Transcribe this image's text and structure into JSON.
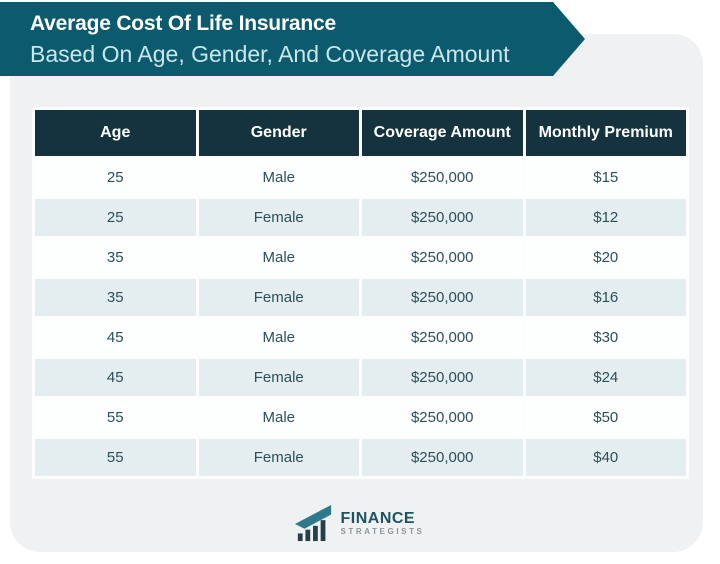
{
  "banner": {
    "title": "Average Cost Of Life Insurance",
    "subtitle": "Based On Age, Gender, And Coverage Amount"
  },
  "table": {
    "columns": [
      "Age",
      "Gender",
      "Coverage Amount",
      "Monthly Premium"
    ],
    "rows": [
      [
        "25",
        "Male",
        "$250,000",
        "$15"
      ],
      [
        "25",
        "Female",
        "$250,000",
        "$12"
      ],
      [
        "35",
        "Male",
        "$250,000",
        "$20"
      ],
      [
        "35",
        "Female",
        "$250,000",
        "$16"
      ],
      [
        "45",
        "Male",
        "$250,000",
        "$30"
      ],
      [
        "45",
        "Female",
        "$250,000",
        "$24"
      ],
      [
        "55",
        "Male",
        "$250,000",
        "$50"
      ],
      [
        "55",
        "Female",
        "$250,000",
        "$40"
      ]
    ]
  },
  "logo": {
    "name_top": "FINANCE",
    "name_bottom": "STRATEGISTS"
  },
  "colors": {
    "banner_bg": "#0c5a6e",
    "header_bg": "#14333e",
    "card_bg": "#eff1f2",
    "row_alt_bg": "#e4edf0",
    "row_bg": "#fdfefe",
    "body_text": "#2d4f5a",
    "subtitle_text": "#c9e7eb",
    "logo_teal": "#2c7a8c",
    "logo_dark": "#26404a"
  },
  "chart_data": {
    "type": "table",
    "title": "Average Cost Of Life Insurance Based On Age, Gender, And Coverage Amount",
    "columns": [
      "Age",
      "Gender",
      "Coverage Amount",
      "Monthly Premium"
    ],
    "rows": [
      [
        25,
        "Male",
        250000,
        15
      ],
      [
        25,
        "Female",
        250000,
        12
      ],
      [
        35,
        "Male",
        250000,
        20
      ],
      [
        35,
        "Female",
        250000,
        16
      ],
      [
        45,
        "Male",
        250000,
        30
      ],
      [
        45,
        "Female",
        250000,
        24
      ],
      [
        55,
        "Male",
        250000,
        50
      ],
      [
        55,
        "Female",
        250000,
        40
      ]
    ]
  }
}
